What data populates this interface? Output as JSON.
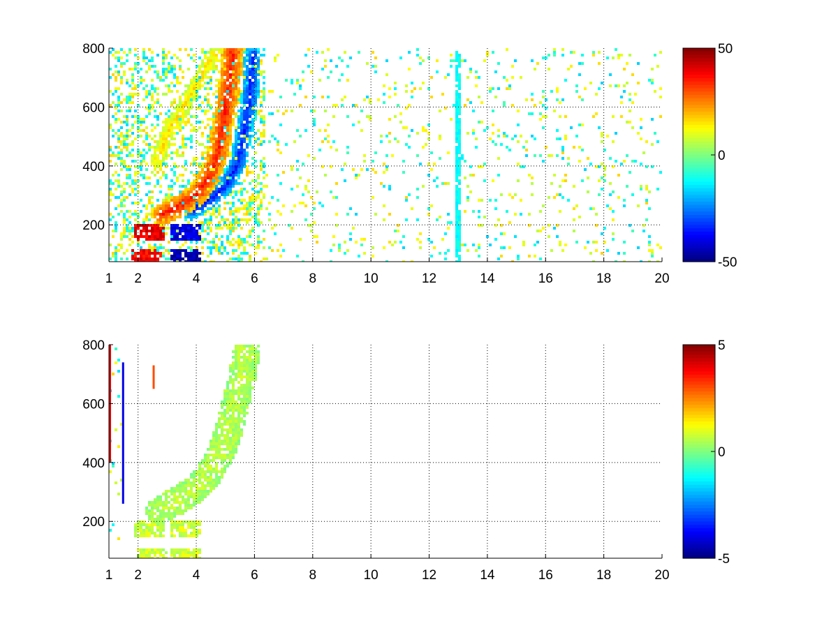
{
  "chart_data": [
    {
      "type": "heatmap",
      "title": "",
      "xlabel": "",
      "ylabel": "",
      "xlim": [
        1,
        20
      ],
      "ylim": [
        75,
        800
      ],
      "x_ticks": [
        "1",
        "2",
        "4",
        "6",
        "8",
        "10",
        "12",
        "14",
        "16",
        "18",
        "20"
      ],
      "x_tick_values": [
        1,
        2,
        4,
        6,
        8,
        10,
        12,
        14,
        16,
        18,
        20
      ],
      "y_ticks": [
        "200",
        "400",
        "600",
        "800"
      ],
      "y_tick_values": [
        200,
        400,
        600,
        800
      ],
      "grid": true,
      "colormap": "jet",
      "colorbar": {
        "min": -50,
        "max": 50,
        "ticks": [
          "50",
          "0",
          "-50"
        ],
        "tick_values": [
          50,
          0,
          -50
        ]
      },
      "features": {
        "positive_ridge": {
          "value": 35,
          "points": [
            [
              2.8,
              240
            ],
            [
              3.4,
              270
            ],
            [
              4.0,
              310
            ],
            [
              4.4,
              370
            ],
            [
              4.7,
              450
            ],
            [
              4.9,
              560
            ],
            [
              5.1,
              680
            ],
            [
              5.2,
              790
            ]
          ]
        },
        "negative_ridge": {
          "value": -35,
          "points": [
            [
              3.8,
              250
            ],
            [
              4.4,
              290
            ],
            [
              5.0,
              340
            ],
            [
              5.4,
              420
            ],
            [
              5.6,
              520
            ],
            [
              5.8,
              640
            ],
            [
              5.9,
              780
            ]
          ]
        },
        "upper_branch": {
          "value": 15,
          "points": [
            [
              2.6,
              420
            ],
            [
              3.0,
              520
            ],
            [
              3.6,
              620
            ],
            [
              4.2,
              720
            ],
            [
              4.6,
              790
            ]
          ]
        },
        "low_blobs": [
          {
            "x": 2.3,
            "y": 180,
            "value": 40
          },
          {
            "x": 3.6,
            "y": 175,
            "value": -40
          },
          {
            "x": 3.6,
            "y": 90,
            "value": -45
          },
          {
            "x": 2.2,
            "y": 95,
            "value": 38
          }
        ],
        "column_stripes": [
          {
            "x": 12.9,
            "value": -12
          }
        ]
      }
    },
    {
      "type": "heatmap",
      "title": "",
      "xlabel": "",
      "ylabel": "",
      "xlim": [
        1,
        20
      ],
      "ylim": [
        75,
        800
      ],
      "x_ticks": [
        "1",
        "2",
        "4",
        "6",
        "8",
        "10",
        "12",
        "14",
        "16",
        "18",
        "20"
      ],
      "x_tick_values": [
        1,
        2,
        4,
        6,
        8,
        10,
        12,
        14,
        16,
        18,
        20
      ],
      "y_ticks": [
        "200",
        "400",
        "600",
        "800"
      ],
      "y_tick_values": [
        200,
        400,
        600,
        800
      ],
      "grid": true,
      "colormap": "jet",
      "colorbar": {
        "min": -5,
        "max": 5,
        "ticks": [
          "5",
          "0",
          "-5"
        ],
        "tick_values": [
          5,
          0,
          -5
        ]
      },
      "features": {
        "main_band": {
          "value": 0.6,
          "points": [
            [
              2.7,
              240
            ],
            [
              3.4,
              280
            ],
            [
              4.0,
              320
            ],
            [
              4.5,
              380
            ],
            [
              4.9,
              460
            ],
            [
              5.2,
              560
            ],
            [
              5.5,
              680
            ],
            [
              5.7,
              790
            ]
          ]
        },
        "low_blobs": [
          {
            "x": 2.3,
            "y": 180,
            "value": 0.8
          },
          {
            "x": 3.6,
            "y": 175,
            "value": 0.8
          },
          {
            "x": 2.4,
            "y": 80,
            "value": 0.8
          },
          {
            "x": 3.6,
            "y": 80,
            "value": 0.8
          }
        ],
        "left_streaks": [
          {
            "x": 1.0,
            "y0": 400,
            "y1": 800,
            "value": 4
          },
          {
            "x": 1.45,
            "y0": 260,
            "y1": 740,
            "value": -4
          },
          {
            "x": 2.5,
            "y0": 650,
            "y1": 730,
            "value": 3
          }
        ]
      }
    }
  ]
}
